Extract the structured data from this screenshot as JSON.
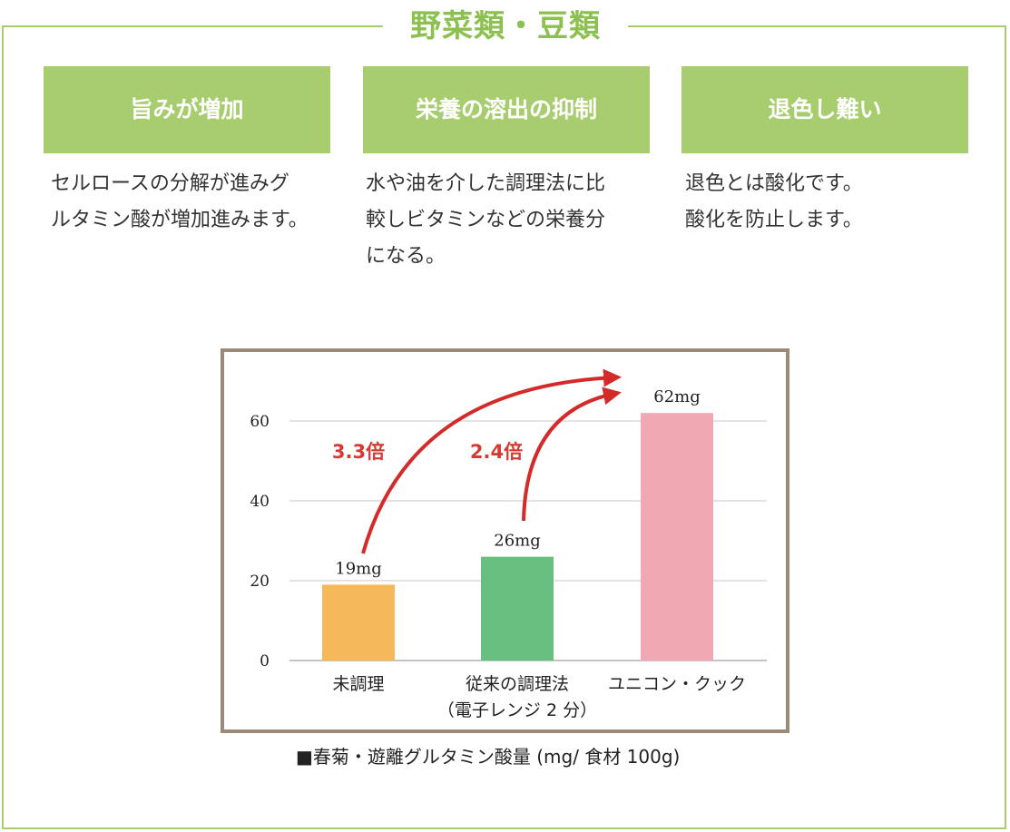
{
  "frame_title": "野菜類・豆類",
  "columns": [
    {
      "heading": "旨みが増加",
      "lines": [
        "セルロースの分解が進みグ",
        "ルタミン酸が増加進みます。"
      ]
    },
    {
      "heading": "栄養の溶出の抑制",
      "lines": [
        "水や油を介した調理法に比",
        "較しビタミンなどの栄養分",
        "になる。"
      ]
    },
    {
      "heading": "退色し難い",
      "lines": [
        "退色とは酸化です。",
        "酸化を防止します。"
      ]
    }
  ],
  "chart_data": {
    "type": "bar",
    "title": "",
    "categories": [
      [
        "未調理"
      ],
      [
        "従来の調理法",
        "（電子レンジ 2 分）"
      ],
      [
        "ユニコン・クック"
      ]
    ],
    "values": [
      19,
      26,
      62
    ],
    "value_labels": [
      "19mg",
      "26mg",
      "62mg"
    ],
    "bar_colors": [
      "#f5b95c",
      "#69bf80",
      "#f0a8b2"
    ],
    "ylim": [
      0,
      70
    ],
    "yticks": [
      0,
      20,
      40,
      60
    ],
    "grid": true,
    "annotations": [
      {
        "text": "3.3倍",
        "from": 0,
        "to": 2
      },
      {
        "text": "2.4倍",
        "from": 1,
        "to": 2
      }
    ],
    "annotation_color": "#d42a2a",
    "caption": "■春菊・遊離グルタミン酸量 (mg/ 食材 100g)"
  }
}
